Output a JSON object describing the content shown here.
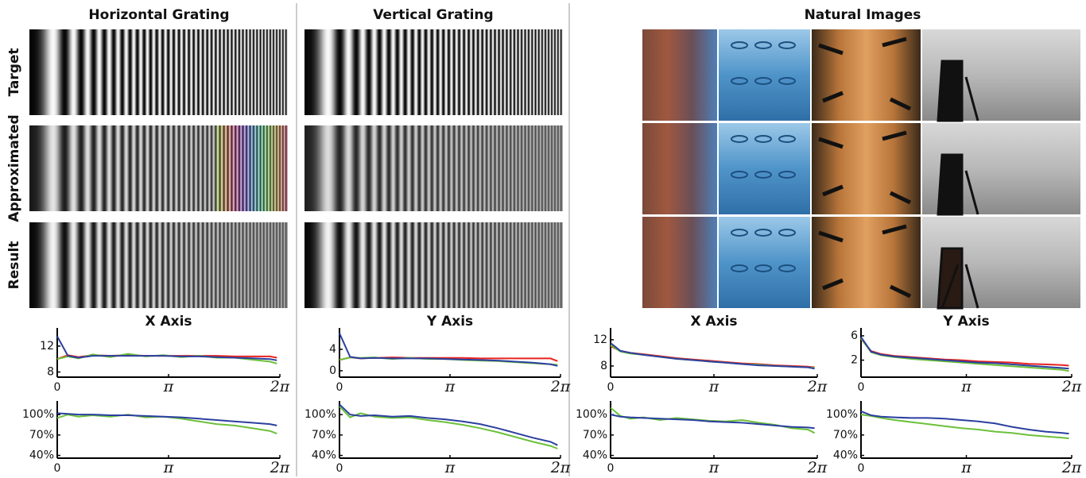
{
  "columns": [
    "Horizontal Grating",
    "Vertical Grating",
    "Natural Images"
  ],
  "rows": [
    "Target",
    "Approximated",
    "Result"
  ],
  "chart_data": [
    {
      "type": "line",
      "title": "X Axis",
      "x": [
        0,
        0.3,
        0.6,
        1,
        1.5,
        2,
        2.5,
        3,
        3.5,
        4,
        4.5,
        5,
        5.5,
        6,
        6.2
      ],
      "xlim": [
        0,
        6.2832
      ],
      "xticks": [
        0,
        {
          "value": 3.1416,
          "label": "π"
        },
        {
          "value": 6.2832,
          "label": "2π"
        }
      ],
      "ylim": [
        7.2,
        14.8
      ],
      "yticks": [
        8,
        12
      ],
      "series": [
        {
          "color": "#e8231f",
          "values": [
            10,
            10.6,
            10.3,
            10.6,
            10.5,
            10.6,
            10.5,
            10.5,
            10.5,
            10.5,
            10.5,
            10.4,
            10.4,
            10.4,
            10.2
          ]
        },
        {
          "color": "#6cc03a",
          "values": [
            10,
            10.4,
            10.1,
            10.7,
            10.3,
            10.8,
            10.4,
            10.6,
            10.3,
            10.5,
            10.2,
            10.2,
            9.9,
            9.6,
            9.3
          ]
        },
        {
          "color": "#2b3fa0",
          "values": [
            13.5,
            10.5,
            10.2,
            10.5,
            10.5,
            10.5,
            10.5,
            10.5,
            10.4,
            10.4,
            10.3,
            10.2,
            10.1,
            10.0,
            9.8
          ]
        }
      ]
    },
    {
      "type": "line",
      "title": "Y Axis",
      "x": [
        0,
        0.3,
        0.6,
        1,
        1.5,
        2,
        2.5,
        3,
        3.5,
        4,
        4.5,
        5,
        5.5,
        6,
        6.2
      ],
      "xlim": [
        0,
        6.2832
      ],
      "xticks": [
        0,
        {
          "value": 3.1416,
          "label": "π"
        },
        {
          "value": 6.2832,
          "label": "2π"
        }
      ],
      "ylim": [
        -1.2,
        8
      ],
      "yticks": [
        0,
        4
      ],
      "series": [
        {
          "color": "#e8231f",
          "values": [
            2,
            2.5,
            2.3,
            2.4,
            2.5,
            2.4,
            2.4,
            2.4,
            2.4,
            2.3,
            2.3,
            2.3,
            2.3,
            2.3,
            1.8
          ]
        },
        {
          "color": "#6cc03a",
          "values": [
            2,
            2.5,
            2.4,
            2.5,
            2.2,
            2.4,
            2.2,
            2.2,
            2.0,
            1.9,
            1.8,
            1.6,
            1.4,
            1.2,
            1.1
          ]
        },
        {
          "color": "#2b3fa0",
          "values": [
            7,
            2.6,
            2.3,
            2.4,
            2.3,
            2.3,
            2.3,
            2.2,
            2.1,
            2,
            1.9,
            1.7,
            1.5,
            1.2,
            0.9
          ]
        }
      ]
    },
    {
      "type": "line",
      "title": "X Axis",
      "x": [
        0,
        0.3,
        0.6,
        1,
        1.5,
        2,
        2.5,
        3,
        3.5,
        4,
        4.5,
        5,
        5.5,
        6,
        6.2
      ],
      "xlim": [
        0,
        6.2832
      ],
      "xticks": [
        0,
        {
          "value": 3.1416,
          "label": "π"
        },
        {
          "value": 6.2832,
          "label": "2π"
        }
      ],
      "ylim": [
        6.3,
        13.8
      ],
      "yticks": [
        8,
        12
      ],
      "series": [
        {
          "color": "#e8231f",
          "values": [
            11,
            10.3,
            10,
            9.8,
            9.5,
            9.2,
            9,
            8.8,
            8.6,
            8.4,
            8.3,
            8.1,
            8,
            7.9,
            7.8
          ]
        },
        {
          "color": "#6cc03a",
          "values": [
            11.2,
            10.2,
            9.9,
            9.7,
            9.4,
            9.1,
            8.9,
            8.7,
            8.5,
            8.3,
            8.2,
            8,
            7.9,
            7.8,
            7.7
          ]
        },
        {
          "color": "#2b3fa0",
          "values": [
            11.5,
            10.3,
            10,
            9.7,
            9.4,
            9.1,
            8.9,
            8.7,
            8.5,
            8.3,
            8.1,
            8,
            7.9,
            7.8,
            7.6
          ]
        }
      ]
    },
    {
      "type": "line",
      "title": "Y Axis",
      "x": [
        0,
        0.3,
        0.6,
        1,
        1.5,
        2,
        2.5,
        3,
        3.5,
        4,
        4.5,
        5,
        5.5,
        6,
        6.2
      ],
      "xlim": [
        0,
        6.2832
      ],
      "xticks": [
        0,
        {
          "value": 3.1416,
          "label": "π"
        },
        {
          "value": 6.2832,
          "label": "2π"
        }
      ],
      "ylim": [
        -0.8,
        7.3
      ],
      "yticks": [
        2,
        6
      ],
      "series": [
        {
          "color": "#e8231f",
          "values": [
            5.5,
            3.5,
            3,
            2.7,
            2.5,
            2.3,
            2.1,
            2,
            1.8,
            1.7,
            1.6,
            1.4,
            1.3,
            1.2,
            1.1
          ]
        },
        {
          "color": "#6cc03a",
          "values": [
            5.6,
            3.3,
            2.8,
            2.5,
            2.2,
            2,
            1.8,
            1.6,
            1.4,
            1.2,
            1,
            0.8,
            0.6,
            0.4,
            0.2
          ]
        },
        {
          "color": "#2b3fa0",
          "values": [
            5.8,
            3.4,
            2.9,
            2.6,
            2.4,
            2.2,
            2,
            1.8,
            1.6,
            1.5,
            1.3,
            1.1,
            0.9,
            0.7,
            0.6
          ]
        }
      ]
    },
    {
      "type": "line",
      "x": [
        0,
        0.3,
        0.6,
        1,
        1.5,
        2,
        2.5,
        3,
        3.5,
        4,
        4.5,
        5,
        5.5,
        6,
        6.2
      ],
      "xlim": [
        0,
        6.2832
      ],
      "xticks": [
        0,
        {
          "value": 3.1416,
          "label": "π"
        },
        {
          "value": 6.2832,
          "label": "2π"
        }
      ],
      "ylim": [
        36,
        120
      ],
      "yticks": [
        {
          "value": 40,
          "label": "40%"
        },
        {
          "value": 70,
          "label": "70%"
        },
        {
          "value": 100,
          "label": "100%"
        }
      ],
      "series": [
        {
          "color": "#6cc03a",
          "values": [
            95,
            100,
            97,
            99,
            97,
            100,
            96,
            97,
            94,
            90,
            86,
            84,
            80,
            76,
            72
          ]
        },
        {
          "color": "#2b3fa0",
          "values": [
            102,
            101,
            100,
            100,
            99,
            99,
            98,
            97,
            96,
            94,
            92,
            90,
            88,
            86,
            84
          ]
        }
      ]
    },
    {
      "type": "line",
      "x": [
        0,
        0.3,
        0.6,
        1,
        1.5,
        2,
        2.5,
        3,
        3.5,
        4,
        4.5,
        5,
        5.5,
        6,
        6.2
      ],
      "xlim": [
        0,
        6.2832
      ],
      "xticks": [
        0,
        {
          "value": 3.1416,
          "label": "π"
        },
        {
          "value": 6.2832,
          "label": "2π"
        }
      ],
      "ylim": [
        36,
        120
      ],
      "yticks": [
        {
          "value": 40,
          "label": "40%"
        },
        {
          "value": 70,
          "label": "70%"
        },
        {
          "value": 100,
          "label": "100%"
        }
      ],
      "series": [
        {
          "color": "#6cc03a",
          "values": [
            112,
            96,
            102,
            97,
            95,
            96,
            92,
            89,
            85,
            80,
            74,
            67,
            60,
            54,
            50
          ]
        },
        {
          "color": "#2b3fa0",
          "values": [
            115,
            100,
            98,
            99,
            97,
            98,
            95,
            93,
            90,
            86,
            80,
            73,
            66,
            60,
            55
          ]
        }
      ]
    },
    {
      "type": "line",
      "x": [
        0,
        0.3,
        0.6,
        1,
        1.5,
        2,
        2.5,
        3,
        3.5,
        4,
        4.5,
        5,
        5.5,
        6,
        6.2
      ],
      "xlim": [
        0,
        6.2832
      ],
      "xticks": [
        0,
        {
          "value": 3.1416,
          "label": "π"
        },
        {
          "value": 6.2832,
          "label": "2π"
        }
      ],
      "ylim": [
        36,
        120
      ],
      "yticks": [
        {
          "value": 40,
          "label": "40%"
        },
        {
          "value": 70,
          "label": "70%"
        },
        {
          "value": 100,
          "label": "100%"
        }
      ],
      "series": [
        {
          "color": "#6cc03a",
          "values": [
            110,
            98,
            94,
            96,
            92,
            95,
            93,
            91,
            90,
            92,
            88,
            85,
            80,
            78,
            73
          ]
        },
        {
          "color": "#2b3fa0",
          "values": [
            100,
            97,
            96,
            95,
            94,
            93,
            92,
            90,
            89,
            88,
            86,
            84,
            82,
            81,
            80
          ]
        }
      ]
    },
    {
      "type": "line",
      "x": [
        0,
        0.3,
        0.6,
        1,
        1.5,
        2,
        2.5,
        3,
        3.5,
        4,
        4.5,
        5,
        5.5,
        6,
        6.2
      ],
      "xlim": [
        0,
        6.2832
      ],
      "xticks": [
        0,
        {
          "value": 3.1416,
          "label": "π"
        },
        {
          "value": 6.2832,
          "label": "2π"
        }
      ],
      "ylim": [
        36,
        120
      ],
      "yticks": [
        {
          "value": 40,
          "label": "40%"
        },
        {
          "value": 70,
          "label": "70%"
        },
        {
          "value": 100,
          "label": "100%"
        }
      ],
      "series": [
        {
          "color": "#6cc03a",
          "values": [
            100,
            98,
            95,
            92,
            89,
            86,
            83,
            80,
            78,
            75,
            73,
            70,
            68,
            66,
            65
          ]
        },
        {
          "color": "#2b3fa0",
          "values": [
            105,
            99,
            97,
            96,
            95,
            95,
            94,
            92,
            90,
            87,
            82,
            78,
            75,
            73,
            72
          ]
        }
      ]
    }
  ]
}
